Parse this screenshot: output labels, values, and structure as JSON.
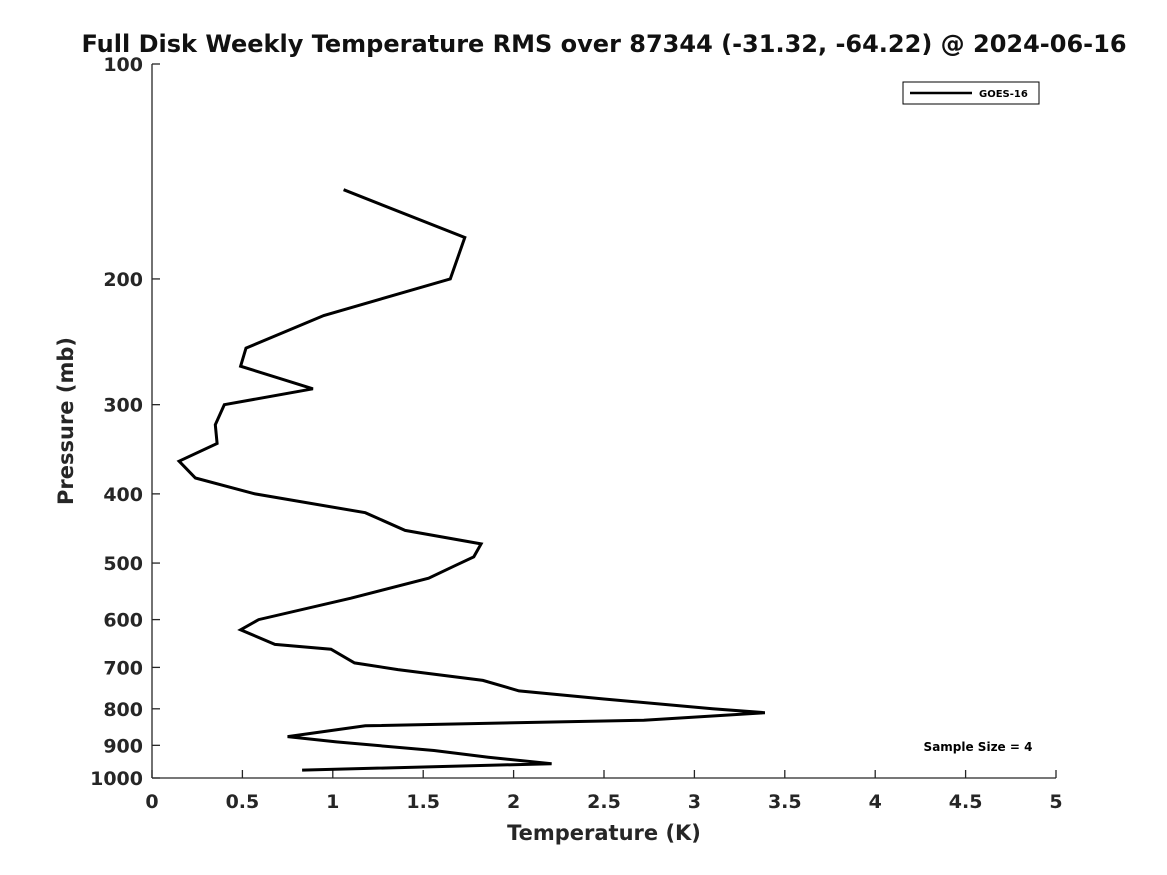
{
  "chart_data": {
    "type": "line",
    "title": "Full Disk Weekly Temperature RMS over 87344 (-31.32, -64.22) @ 2024-06-16",
    "xlabel": "Temperature (K)",
    "ylabel": "Pressure (mb)",
    "xlim": [
      0,
      5
    ],
    "ylim": [
      100,
      1000
    ],
    "y_scale": "log",
    "y_reversed": true,
    "x_ticks": [
      0,
      0.5,
      1,
      1.5,
      2,
      2.5,
      3,
      3.5,
      4,
      4.5,
      5
    ],
    "x_tick_labels": [
      "0",
      "0.5",
      "1",
      "1.5",
      "2",
      "2.5",
      "3",
      "3.5",
      "4",
      "4.5",
      "5"
    ],
    "y_ticks": [
      100,
      200,
      300,
      400,
      500,
      600,
      700,
      800,
      900,
      1000
    ],
    "y_tick_labels": [
      "100",
      "200",
      "300",
      "400",
      "500",
      "600",
      "700",
      "800",
      "900",
      "1000"
    ],
    "grid": false,
    "legend_position": "top-right",
    "annotation": "Sample Size = 4",
    "series": [
      {
        "name": "GOES-16",
        "color": "#000000",
        "x": [
          1.06,
          1.73,
          1.65,
          0.95,
          0.52,
          0.49,
          0.89,
          0.4,
          0.35,
          0.36,
          0.15,
          0.24,
          0.57,
          1.18,
          1.4,
          1.82,
          1.78,
          1.67,
          1.53,
          1.1,
          0.59,
          0.49,
          0.68,
          0.99,
          1.12,
          1.36,
          1.83,
          2.03,
          2.5,
          3.1,
          3.39,
          2.72,
          1.18,
          0.75,
          1.02,
          1.56,
          1.86,
          2.21,
          0.83
        ],
        "y": [
          150,
          175,
          200,
          225,
          250,
          265,
          285,
          300,
          320,
          340,
          360,
          380,
          400,
          425,
          450,
          470,
          490,
          505,
          525,
          560,
          600,
          620,
          650,
          660,
          690,
          705,
          730,
          755,
          775,
          800,
          810,
          830,
          845,
          875,
          890,
          915,
          935,
          955,
          975
        ]
      }
    ]
  }
}
